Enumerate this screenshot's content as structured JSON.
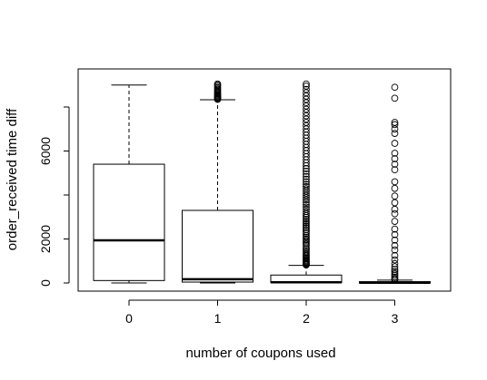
{
  "chart_data": {
    "type": "boxplot",
    "title": "",
    "xlabel": "number of coupons used",
    "ylabel": "order_received time diff",
    "categories": [
      "0",
      "1",
      "2",
      "3"
    ],
    "y_ticks": [
      0,
      2000,
      6000
    ],
    "ylim": [
      -330,
      9200
    ],
    "grid": false,
    "legend": "none",
    "boxes": [
      {
        "category": "0",
        "min": 0,
        "q1": 110,
        "median": 1940,
        "q3": 5400,
        "max": 9000,
        "outliers": []
      },
      {
        "category": "1",
        "min": 0,
        "q1": 40,
        "median": 170,
        "q3": 3300,
        "max": 8330,
        "outliers": [
          8350,
          8380,
          8420,
          8450,
          8480,
          8520,
          8560,
          8600,
          8650,
          8700,
          8760,
          8820,
          8880,
          8940,
          9000,
          9050
        ]
      },
      {
        "category": "2",
        "min": 0,
        "q1": 10,
        "median": 30,
        "q3": 360,
        "max": 800,
        "outliers": [
          820,
          850,
          880,
          910,
          950,
          990,
          1030,
          1080,
          1130,
          1180,
          1240,
          1300,
          1380,
          1450,
          1530,
          1600,
          1700,
          1780,
          1860,
          1940,
          2000,
          2080,
          2150,
          2250,
          2330,
          2420,
          2500,
          2580,
          2660,
          2740,
          2820,
          2900,
          2980,
          3060,
          3150,
          3250,
          3350,
          3450,
          3560,
          3670,
          3780,
          3880,
          3980,
          4080,
          4180,
          4280,
          4380,
          4480,
          4600,
          4720,
          4840,
          4960,
          5080,
          5200,
          5330,
          5460,
          5600,
          5740,
          5880,
          6020,
          6160,
          6300,
          6440,
          6580,
          6720,
          6860,
          7000,
          7150,
          7300,
          7450,
          7600,
          7750,
          7900,
          8050,
          8200,
          8350,
          8500,
          8650,
          8800,
          8950,
          9050
        ]
      },
      {
        "category": "3",
        "min": 0,
        "q1": 0,
        "median": 10,
        "q3": 60,
        "max": 130,
        "outliers": [
          150,
          200,
          270,
          350,
          430,
          520,
          620,
          740,
          880,
          1050,
          1250,
          1500,
          1700,
          1950,
          2200,
          2450,
          2800,
          3150,
          3350,
          3650,
          3950,
          4300,
          4600,
          5150,
          5400,
          5650,
          5900,
          6350,
          6800,
          7000,
          7200,
          7300,
          8400,
          8900
        ]
      }
    ]
  }
}
